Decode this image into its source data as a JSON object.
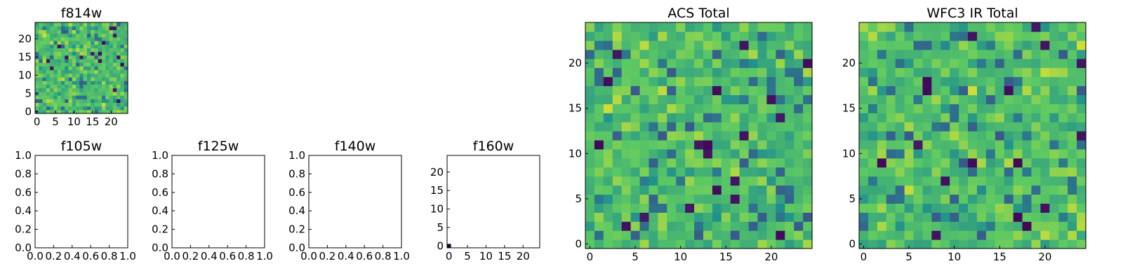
{
  "figure": {
    "colormap": [
      "#440154",
      "#3b528b",
      "#21908d",
      "#5dc963",
      "#fde725"
    ]
  },
  "chart_data": [
    {
      "id": "f814w",
      "type": "heatmap",
      "title": "f814w",
      "grid_size": 25,
      "seed": 3,
      "xticks": [
        "0",
        "5",
        "10",
        "15",
        "20"
      ],
      "yticks": [
        "0",
        "5",
        "10",
        "15",
        "20"
      ]
    },
    {
      "id": "f105w",
      "type": "heatmap",
      "title": "f105w",
      "empty": true,
      "xticks": [
        "0.0",
        "0.2",
        "0.4",
        "0.6",
        "0.8",
        "1.0"
      ],
      "yticks": [
        "0.0",
        "0.2",
        "0.4",
        "0.6",
        "0.8",
        "1.0"
      ]
    },
    {
      "id": "f125w",
      "type": "heatmap",
      "title": "f125w",
      "empty": true,
      "xticks": [
        "0.0",
        "0.2",
        "0.4",
        "0.6",
        "0.8",
        "1.0"
      ],
      "yticks": [
        "0.0",
        "0.2",
        "0.4",
        "0.6",
        "0.8",
        "1.0"
      ]
    },
    {
      "id": "f140w",
      "type": "heatmap",
      "title": "f140w",
      "empty": true,
      "xticks": [
        "0.0",
        "0.2",
        "0.4",
        "0.6",
        "0.8",
        "1.0"
      ],
      "yticks": [
        "0.0",
        "0.2",
        "0.4",
        "0.6",
        "0.8",
        "1.0"
      ]
    },
    {
      "id": "f160w",
      "type": "heatmap",
      "title": "f160w",
      "empty": true,
      "point": [
        0,
        0
      ],
      "xticks": [
        "0",
        "5",
        "10",
        "15",
        "20"
      ],
      "yticks": [
        "0",
        "5",
        "10",
        "15",
        "20"
      ]
    },
    {
      "id": "acs_total",
      "type": "heatmap",
      "title": "ACS Total",
      "grid_size": 25,
      "seed": 11,
      "xticks": [
        "0",
        "5",
        "10",
        "15",
        "20"
      ],
      "yticks": [
        "0",
        "5",
        "10",
        "15",
        "20"
      ]
    },
    {
      "id": "wfc3_ir_total",
      "type": "heatmap",
      "title": "WFC3 IR Total",
      "grid_size": 25,
      "seed": 29,
      "xticks": [
        "0",
        "5",
        "10",
        "15",
        "20"
      ],
      "yticks": [
        "0",
        "5",
        "10",
        "15",
        "20"
      ]
    }
  ]
}
